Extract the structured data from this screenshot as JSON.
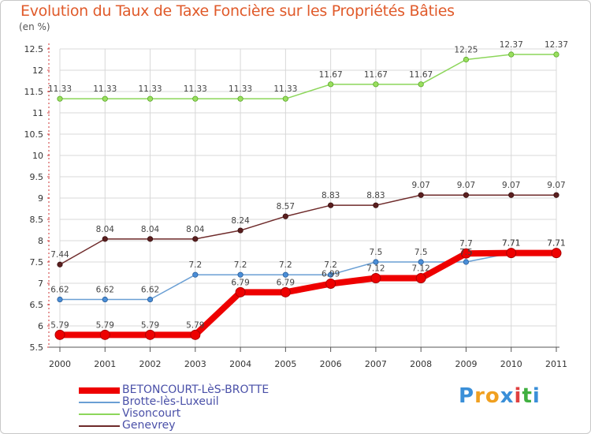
{
  "chart_data": {
    "type": "line",
    "title": "Evolution du Taux de Taxe Foncière sur les Propriétés Bâties",
    "unit_label": "(en %)",
    "x": [
      "2000",
      "2001",
      "2002",
      "2003",
      "2004",
      "2005",
      "2006",
      "2007",
      "2008",
      "2009",
      "2010",
      "2011"
    ],
    "ylim": [
      5.5,
      12.5
    ],
    "yticks": [
      "5.5",
      "6",
      "6.5",
      "7",
      "7.5",
      "8",
      "8.5",
      "9",
      "9.5",
      "10",
      "10.5",
      "11",
      "11.5",
      "12",
      "12.5"
    ],
    "grid": true,
    "legend_position": "bottom-left",
    "series": [
      {
        "name": "BETONCOURT-LèS-BROTTE",
        "color": "#ee0000",
        "values": [
          5.79,
          5.79,
          5.79,
          5.79,
          6.79,
          6.79,
          6.99,
          7.12,
          7.12,
          7.7,
          7.71,
          7.71
        ],
        "labels": [
          "5.79",
          "5.79",
          "5.79",
          "5.79",
          "6.79",
          "6.79",
          "6.99",
          "7.12",
          "7.12",
          "7.7",
          "7.71",
          "7.71"
        ]
      },
      {
        "name": "Brotte-lès-Luxeuil",
        "color": "#6a9fd4",
        "values": [
          6.62,
          6.62,
          6.62,
          7.2,
          7.2,
          7.2,
          7.2,
          7.5,
          7.5,
          7.5,
          7.71,
          7.71
        ],
        "labels": [
          "6.62",
          "6.62",
          "6.62",
          "7.2",
          "7.2",
          "7.2",
          "7.2",
          "7.5",
          "7.5",
          "7.5",
          "7.71",
          "7.71"
        ]
      },
      {
        "name": "Visoncourt",
        "color": "#8cd65a",
        "values": [
          11.33,
          11.33,
          11.33,
          11.33,
          11.33,
          11.33,
          11.67,
          11.67,
          11.67,
          12.25,
          12.37,
          12.37
        ],
        "labels": [
          "11.33",
          "11.33",
          "11.33",
          "11.33",
          "11.33",
          "11.33",
          "11.67",
          "11.67",
          "11.67",
          "12.25",
          "12.37",
          "12.37"
        ]
      },
      {
        "name": "Genevrey",
        "color": "#6e2a2a",
        "values": [
          7.44,
          8.04,
          8.04,
          8.04,
          8.24,
          8.57,
          8.83,
          8.83,
          9.07,
          9.07,
          9.07,
          9.07
        ],
        "labels": [
          "7.44",
          "8.04",
          "8.04",
          "8.04",
          "8.24",
          "8.57",
          "8.83",
          "8.83",
          "9.07",
          "9.07",
          "9.07",
          "9.07"
        ]
      }
    ]
  },
  "logo": {
    "letters": [
      "P",
      "r",
      "o",
      "x",
      "i",
      "t",
      "i"
    ],
    "colors": [
      "#3a8fd8",
      "#f0a020",
      "#f0a020",
      "#3a8fd8",
      "#e04040",
      "#40b040",
      "#3a8fd8"
    ]
  }
}
